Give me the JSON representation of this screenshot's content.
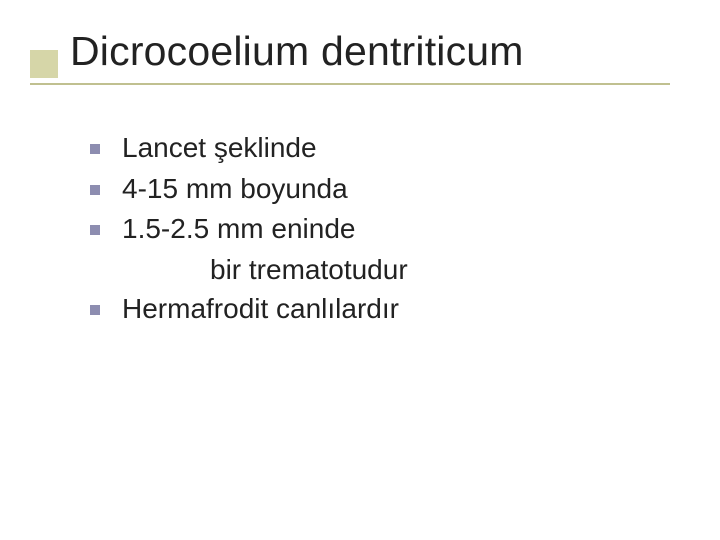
{
  "slide": {
    "title": "Dicrocoelium dentriticum",
    "bullets": [
      {
        "text": "Lancet şeklinde"
      },
      {
        "text": "4-15 mm boyunda"
      },
      {
        "text": "1.5-2.5 mm eninde"
      }
    ],
    "subline": "bir trematotudur",
    "bullets2": [
      {
        "text": "Hermafrodit canlılardır"
      }
    ],
    "colors": {
      "title_accent": "#d6d6a8",
      "underline": "#c0c090",
      "bullet": "#8d8db0",
      "text": "#222222",
      "background": "#ffffff"
    },
    "typography": {
      "title_fontsize": 41,
      "body_fontsize": 28,
      "font_family": "Verdana, Arial, sans-serif"
    }
  }
}
